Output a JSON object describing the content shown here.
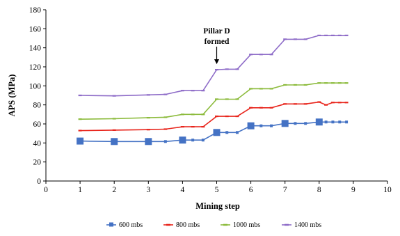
{
  "chart_data": {
    "type": "line",
    "title": "",
    "xlabel": "Mining step",
    "ylabel": "APS (MPa)",
    "xlim": [
      0,
      10
    ],
    "ylim": [
      0,
      180
    ],
    "xticks": [
      "0",
      "1",
      "2",
      "3",
      "4",
      "5",
      "6",
      "7",
      "8",
      "9",
      "10"
    ],
    "yticks": [
      "0",
      "20",
      "40",
      "60",
      "80",
      "100",
      "120",
      "140",
      "160",
      "180"
    ],
    "grid": false,
    "legend_position": "bottom",
    "annotation": {
      "line1": "Pillar D",
      "line2": "formed",
      "x": 5,
      "y": 117
    },
    "series": [
      {
        "name": "600 mbs",
        "color": "#4472c4",
        "marker": "square",
        "points": [
          [
            1,
            42
          ],
          [
            2,
            41.5
          ],
          [
            3,
            41.5
          ],
          [
            3.5,
            41.5
          ],
          [
            4,
            43
          ],
          [
            4.3,
            43
          ],
          [
            4.6,
            43
          ],
          [
            5,
            51
          ],
          [
            5.3,
            51
          ],
          [
            5.6,
            51
          ],
          [
            6,
            58
          ],
          [
            6.3,
            58
          ],
          [
            6.6,
            58
          ],
          [
            7,
            60.5
          ],
          [
            7.3,
            60.5
          ],
          [
            7.6,
            60.5
          ],
          [
            8,
            62
          ],
          [
            8.2,
            62
          ],
          [
            8.4,
            62
          ],
          [
            8.6,
            62
          ],
          [
            8.8,
            62
          ]
        ],
        "big_markers": [
          [
            1,
            42
          ],
          [
            2,
            41.5
          ],
          [
            3,
            41.5
          ],
          [
            4,
            43
          ],
          [
            5,
            51
          ],
          [
            6,
            58
          ],
          [
            7,
            60.5
          ],
          [
            8,
            62
          ]
        ]
      },
      {
        "name": "800 mbs",
        "color": "#e8251c",
        "marker": "dash",
        "points": [
          [
            1,
            53
          ],
          [
            2,
            53.5
          ],
          [
            3,
            54
          ],
          [
            3.5,
            54.5
          ],
          [
            4,
            57
          ],
          [
            4.3,
            57
          ],
          [
            4.6,
            57
          ],
          [
            5,
            68
          ],
          [
            5.3,
            68
          ],
          [
            5.6,
            68
          ],
          [
            6,
            77
          ],
          [
            6.3,
            77
          ],
          [
            6.6,
            77
          ],
          [
            7,
            81
          ],
          [
            7.3,
            81
          ],
          [
            7.6,
            81
          ],
          [
            8,
            83
          ],
          [
            8.2,
            80
          ],
          [
            8.4,
            82.5
          ],
          [
            8.6,
            82.5
          ],
          [
            8.8,
            82.5
          ]
        ]
      },
      {
        "name": "1000 mbs",
        "color": "#8cbb3c",
        "marker": "dash",
        "points": [
          [
            1,
            65
          ],
          [
            2,
            65.5
          ],
          [
            3,
            66.5
          ],
          [
            3.5,
            67
          ],
          [
            4,
            70
          ],
          [
            4.3,
            70
          ],
          [
            4.6,
            70
          ],
          [
            5,
            86
          ],
          [
            5.3,
            86
          ],
          [
            5.6,
            86
          ],
          [
            6,
            97
          ],
          [
            6.3,
            97
          ],
          [
            6.6,
            97
          ],
          [
            7,
            101
          ],
          [
            7.3,
            101
          ],
          [
            7.6,
            101
          ],
          [
            8,
            103
          ],
          [
            8.2,
            103
          ],
          [
            8.4,
            103
          ],
          [
            8.6,
            103
          ],
          [
            8.8,
            103
          ]
        ]
      },
      {
        "name": "1400 mbs",
        "color": "#8e6cc8",
        "marker": "dash",
        "points": [
          [
            1,
            90
          ],
          [
            2,
            89.5
          ],
          [
            3,
            90.5
          ],
          [
            3.5,
            91
          ],
          [
            4,
            95
          ],
          [
            4.3,
            95
          ],
          [
            4.6,
            95
          ],
          [
            5,
            117
          ],
          [
            5.3,
            117.5
          ],
          [
            5.6,
            117.5
          ],
          [
            6,
            133
          ],
          [
            6.3,
            133
          ],
          [
            6.6,
            133
          ],
          [
            7,
            149
          ],
          [
            7.3,
            149
          ],
          [
            7.6,
            149
          ],
          [
            8,
            153
          ],
          [
            8.2,
            153
          ],
          [
            8.4,
            153
          ],
          [
            8.6,
            153
          ],
          [
            8.8,
            153
          ]
        ]
      }
    ]
  }
}
